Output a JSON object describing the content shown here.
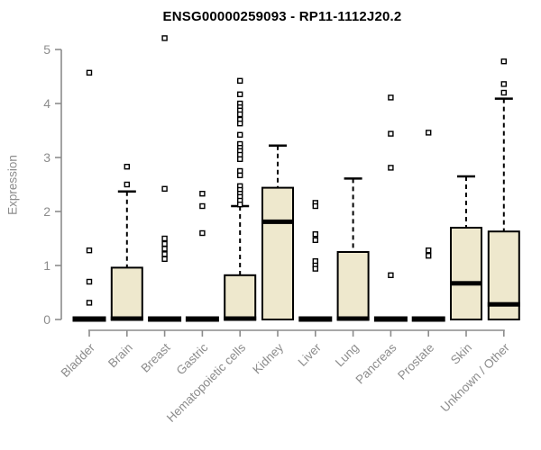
{
  "chart_data": {
    "type": "boxplot",
    "title": "ENSG00000259093 - RP11-1112J20.2",
    "ylabel": "Expression",
    "xlabel": "",
    "ylim": [
      0,
      5
    ],
    "yticks": [
      0,
      1,
      2,
      3,
      4,
      5
    ],
    "grid": false,
    "legend": false,
    "categories": [
      "Bladder",
      "Brain",
      "Breast",
      "Gastric",
      "Hematopoietic cells",
      "Kidney",
      "Liver",
      "Lung",
      "Pancreas",
      "Prostate",
      "Skin",
      "Unknown / Other"
    ],
    "boxes": [
      {
        "category": "Bladder",
        "q1": 0,
        "median": 0,
        "q3": 0,
        "whisker_low": 0,
        "whisker_high": 0,
        "outliers": [
          4.57,
          1.28,
          0.7,
          0.31
        ]
      },
      {
        "category": "Brain",
        "q1": 0,
        "median": 0,
        "q3": 0.96,
        "whisker_low": 0,
        "whisker_high": 2.37,
        "outliers": [
          2.83,
          2.5
        ]
      },
      {
        "category": "Breast",
        "q1": 0,
        "median": 0,
        "q3": 0,
        "whisker_low": 0,
        "whisker_high": 0,
        "outliers": [
          5.21,
          2.42,
          1.5,
          1.4,
          1.31,
          1.21,
          1.12
        ]
      },
      {
        "category": "Gastric",
        "q1": 0,
        "median": 0,
        "q3": 0,
        "whisker_low": 0,
        "whisker_high": 0,
        "outliers": [
          2.33,
          2.1,
          1.6
        ]
      },
      {
        "category": "Hematopoietic cells",
        "q1": 0,
        "median": 0,
        "q3": 0.82,
        "whisker_low": 0,
        "whisker_high": 2.1,
        "outliers": [
          4.42,
          4.17,
          4.0,
          3.93,
          3.87,
          3.8,
          3.7,
          3.63,
          3.42,
          3.25,
          3.18,
          3.12,
          3.05,
          2.97,
          2.75,
          2.67,
          2.47,
          2.4,
          2.33,
          2.27,
          2.2,
          2.13
        ]
      },
      {
        "category": "Kidney",
        "q1": 0,
        "median": 1.81,
        "q3": 2.44,
        "whisker_low": 0,
        "whisker_high": 3.22,
        "outliers": []
      },
      {
        "category": "Liver",
        "q1": 0,
        "median": 0,
        "q3": 0,
        "whisker_low": 0,
        "whisker_high": 0,
        "outliers": [
          2.16,
          2.1,
          1.58,
          1.47,
          1.08,
          1.0,
          0.94
        ]
      },
      {
        "category": "Lung",
        "q1": 0,
        "median": 0,
        "q3": 1.25,
        "whisker_low": 0,
        "whisker_high": 2.61,
        "outliers": []
      },
      {
        "category": "Pancreas",
        "q1": 0,
        "median": 0,
        "q3": 0,
        "whisker_low": 0,
        "whisker_high": 0,
        "outliers": [
          4.11,
          3.44,
          2.81,
          0.82
        ]
      },
      {
        "category": "Prostate",
        "q1": 0,
        "median": 0,
        "q3": 0,
        "whisker_low": 0,
        "whisker_high": 0,
        "outliers": [
          3.46,
          1.28,
          1.18
        ]
      },
      {
        "category": "Skin",
        "q1": 0,
        "median": 0.67,
        "q3": 1.7,
        "whisker_low": 0,
        "whisker_high": 2.65,
        "outliers": []
      },
      {
        "category": "Unknown / Other",
        "q1": 0,
        "median": 0.28,
        "q3": 1.63,
        "whisker_low": 0,
        "whisker_high": 4.09,
        "outliers": [
          4.78,
          4.36,
          4.2
        ]
      }
    ],
    "colors": {
      "box_fill": "#EEE8CD",
      "box_border": "#000000",
      "median": "#000000",
      "whisker": "#000000",
      "outlier_fill": "#ffffff",
      "axis": "#8c8c8c",
      "tick_text": "#8c8c8c",
      "title_text": "#000000"
    },
    "marker": "open-square",
    "legend_position": "none"
  }
}
